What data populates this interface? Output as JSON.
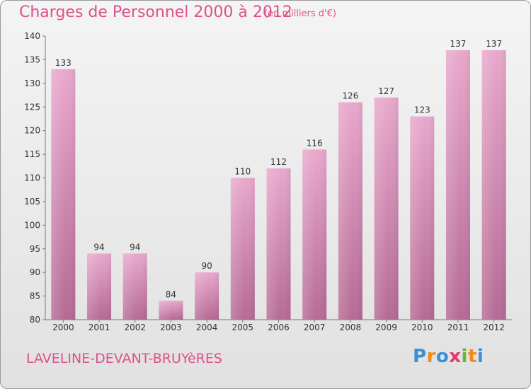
{
  "header": {
    "title": "Charges de Personnel 2000 à 2012",
    "subtitle": "(en milliers d'€)"
  },
  "footer": {
    "commune": "LAVELINE-DEVANT-BRUYèRES",
    "logo_text": "Proxiti",
    "logo_letters": [
      {
        "ch": "P",
        "color": "#3a8fd6"
      },
      {
        "ch": "r",
        "color": "#f08a1c"
      },
      {
        "ch": "o",
        "color": "#3a8fd6"
      },
      {
        "ch": "x",
        "color": "#e23a6f"
      },
      {
        "ch": "i",
        "color": "#6bb82e"
      },
      {
        "ch": "t",
        "color": "#f08a1c"
      },
      {
        "ch": "i",
        "color": "#3a8fd6"
      }
    ]
  },
  "colors": {
    "accent": "#e0508a",
    "bar_light": "#e8a8cc",
    "bar_dark": "#b56a94"
  },
  "chart_data": {
    "type": "bar",
    "title": "Charges de Personnel 2000 à 2012",
    "subtitle": "(en milliers d'€)",
    "categories": [
      "2000",
      "2001",
      "2002",
      "2003",
      "2004",
      "2005",
      "2006",
      "2007",
      "2008",
      "2009",
      "2010",
      "2011",
      "2012"
    ],
    "values": [
      133,
      94,
      94,
      84,
      90,
      110,
      112,
      116,
      126,
      127,
      123,
      137,
      137
    ],
    "ylim": [
      80,
      140
    ],
    "yticks": [
      80,
      85,
      90,
      95,
      100,
      105,
      110,
      115,
      120,
      125,
      130,
      135,
      140
    ],
    "xlabel": "",
    "ylabel": "",
    "grid": false
  }
}
